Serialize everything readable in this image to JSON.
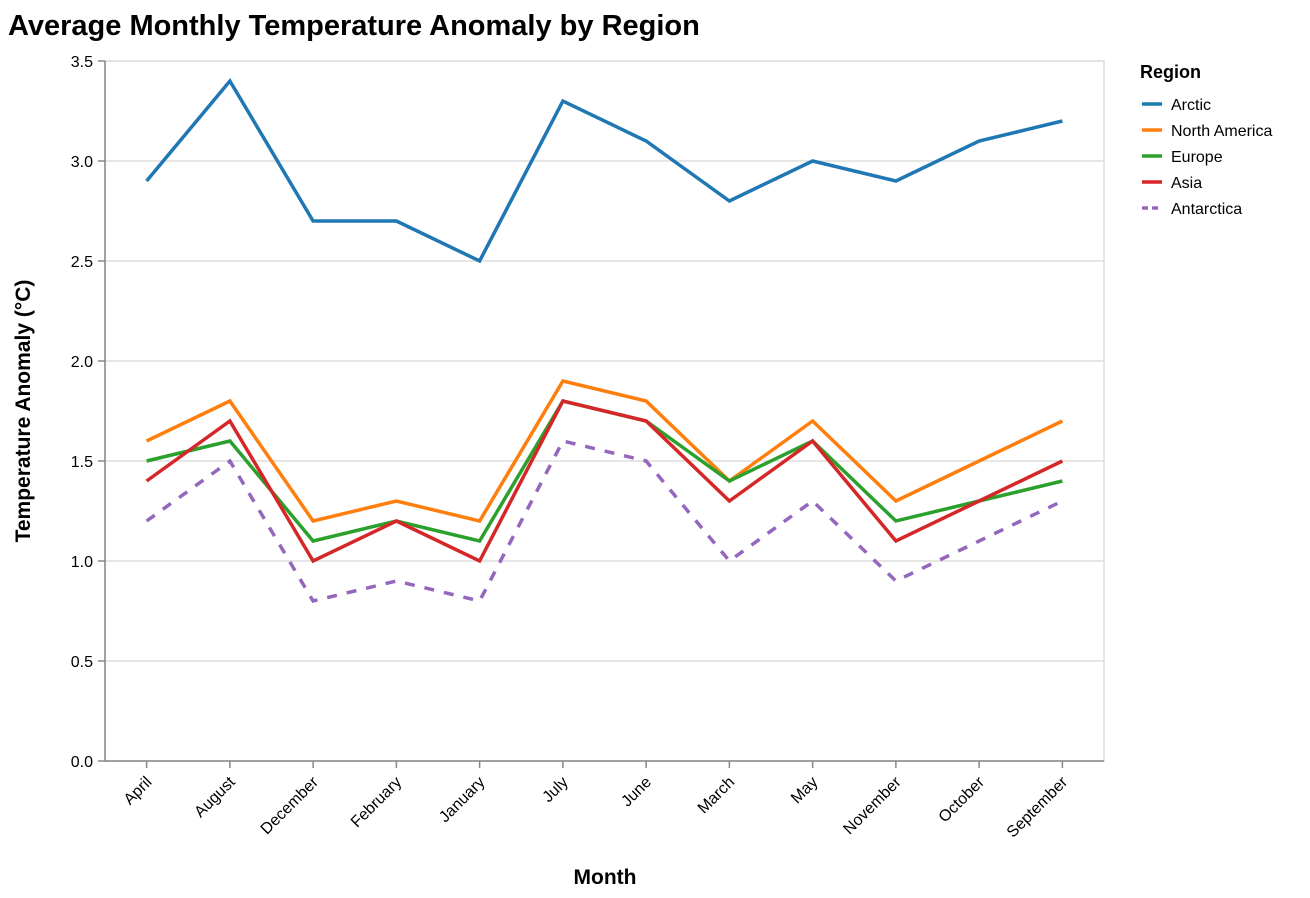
{
  "chart_data": {
    "type": "line",
    "title": "Average Monthly Temperature Anomaly by Region",
    "xlabel": "Month",
    "ylabel": "Temperature Anomaly (°C)",
    "legend_title": "Region",
    "legend_position": "top-right",
    "grid": true,
    "categories": [
      "April",
      "August",
      "December",
      "February",
      "January",
      "July",
      "June",
      "March",
      "May",
      "November",
      "October",
      "September"
    ],
    "ylim": [
      0,
      3.5
    ],
    "yticks": [
      "0.0",
      "0.5",
      "1.0",
      "1.5",
      "2.0",
      "2.5",
      "3.0",
      "3.5"
    ],
    "series": [
      {
        "name": "Arctic",
        "color": "#1f77b4",
        "dashed": false,
        "values": [
          2.9,
          3.4,
          2.7,
          2.7,
          2.5,
          3.3,
          3.1,
          2.8,
          3.0,
          2.9,
          3.1,
          3.2
        ]
      },
      {
        "name": "North America",
        "color": "#ff7f0e",
        "dashed": false,
        "values": [
          1.6,
          1.8,
          1.2,
          1.3,
          1.2,
          1.9,
          1.8,
          1.4,
          1.7,
          1.3,
          1.5,
          1.7
        ]
      },
      {
        "name": "Europe",
        "color": "#2ca02c",
        "dashed": false,
        "values": [
          1.5,
          1.6,
          1.1,
          1.2,
          1.1,
          1.8,
          1.7,
          1.4,
          1.6,
          1.2,
          1.3,
          1.4
        ]
      },
      {
        "name": "Asia",
        "color": "#d62728",
        "dashed": false,
        "values": [
          1.4,
          1.7,
          1.0,
          1.2,
          1.0,
          1.8,
          1.7,
          1.3,
          1.6,
          1.1,
          1.3,
          1.5
        ]
      },
      {
        "name": "Antarctica",
        "color": "#9467bd",
        "dashed": true,
        "values": [
          1.2,
          1.5,
          0.8,
          0.9,
          0.8,
          1.6,
          1.5,
          1.0,
          1.3,
          0.9,
          1.1,
          1.3
        ]
      }
    ]
  }
}
